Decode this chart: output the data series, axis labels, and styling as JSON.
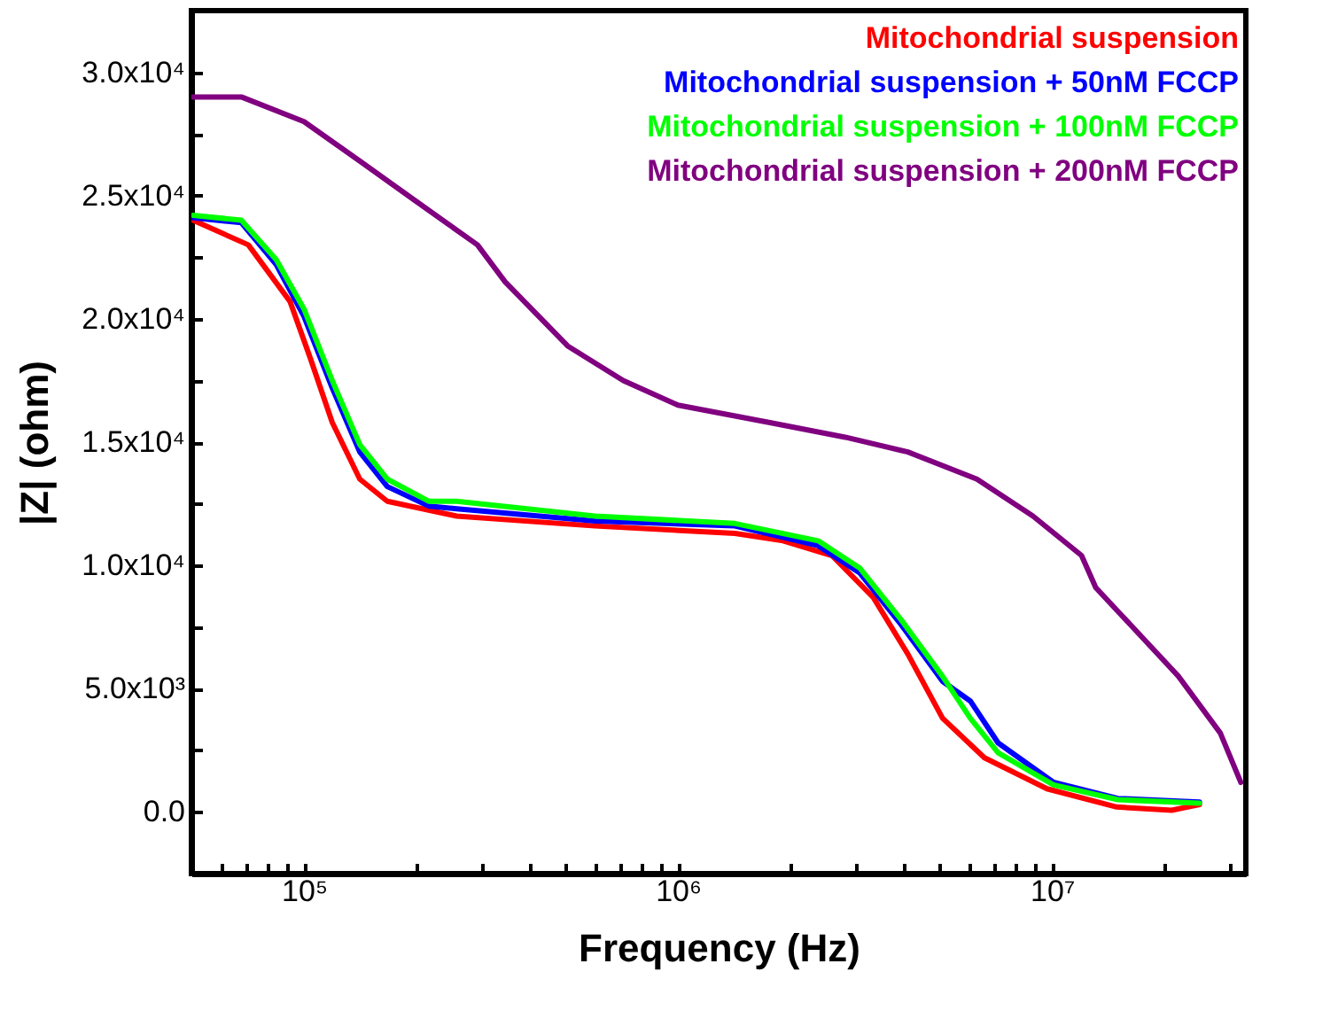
{
  "chart_data": {
    "type": "line",
    "xlabel": "Frequency (Hz)",
    "ylabel": "|Z| (ohm)",
    "log": "x",
    "xlim": [
      50000,
      33000000
    ],
    "ylim": [
      -2500,
      32500
    ],
    "xticks": [
      {
        "value": 100000,
        "label": "10⁵"
      },
      {
        "value": 1000000,
        "label": "10⁶"
      },
      {
        "value": 10000000,
        "label": "10⁷"
      },
      {
        "value": 60000,
        "label": null
      },
      {
        "value": 70000,
        "label": null
      },
      {
        "value": 80000,
        "label": null
      },
      {
        "value": 90000,
        "label": null
      },
      {
        "value": 200000,
        "label": null
      },
      {
        "value": 300000,
        "label": null
      },
      {
        "value": 400000,
        "label": null
      },
      {
        "value": 500000,
        "label": null
      },
      {
        "value": 600000,
        "label": null
      },
      {
        "value": 700000,
        "label": null
      },
      {
        "value": 800000,
        "label": null
      },
      {
        "value": 900000,
        "label": null
      },
      {
        "value": 2000000,
        "label": null
      },
      {
        "value": 3000000,
        "label": null
      },
      {
        "value": 4000000,
        "label": null
      },
      {
        "value": 5000000,
        "label": null
      },
      {
        "value": 6000000,
        "label": null
      },
      {
        "value": 7000000,
        "label": null
      },
      {
        "value": 8000000,
        "label": null
      },
      {
        "value": 9000000,
        "label": null
      },
      {
        "value": 20000000,
        "label": null
      },
      {
        "value": 30000000,
        "label": null
      }
    ],
    "yticks": [
      {
        "value": 0,
        "label": "0.0"
      },
      {
        "value": 5000,
        "label": "5.0x10³"
      },
      {
        "value": 10000,
        "label": "1.0x10⁴"
      },
      {
        "value": 15000,
        "label": "1.5x10⁴"
      },
      {
        "value": 20000,
        "label": "2.0x10⁴"
      },
      {
        "value": 25000,
        "label": "2.5x10⁴"
      },
      {
        "value": 30000,
        "label": "3.0x10⁴"
      },
      {
        "value": -2500,
        "label": null
      },
      {
        "value": 2500,
        "label": null
      },
      {
        "value": 7500,
        "label": null
      },
      {
        "value": 12500,
        "label": null
      },
      {
        "value": 17500,
        "label": null
      },
      {
        "value": 22500,
        "label": null
      },
      {
        "value": 27500,
        "label": null
      }
    ],
    "grid": false,
    "legend": "top right",
    "marker": "none",
    "line_style": "solid",
    "series": [
      {
        "name": "Mitochondrial suspension",
        "color": "#ff0000",
        "x": [
          50500,
          71000,
          91800,
          104000,
          119000,
          141000,
          167000,
          256000,
          600000,
          1420000,
          1910000,
          2580000,
          3330000,
          4120000,
          5100000,
          6600000,
          9700000,
          14900000,
          20900000,
          24800000
        ],
        "values": [
          24000,
          23000,
          20700,
          18400,
          15800,
          13500,
          12600,
          12000,
          11600,
          11300,
          11000,
          10400,
          8700,
          6400,
          3800,
          2200,
          940,
          200,
          70,
          300
        ]
      },
      {
        "name": "Mitochondrial suspension + 50nM FCCP",
        "color": "#0000ff",
        "x": [
          50500,
          68000,
          84300,
          100000,
          119000,
          141000,
          167000,
          216000,
          256000,
          600000,
          1420000,
          2370000,
          3060000,
          3950000,
          5100000,
          6050000,
          7180000,
          10100000,
          15000000,
          24800000
        ],
        "values": [
          24100,
          23900,
          22200,
          20100,
          17200,
          14600,
          13200,
          12400,
          12300,
          11800,
          11600,
          10800,
          9700,
          7600,
          5300,
          4500,
          2800,
          1200,
          550,
          400
        ]
      },
      {
        "name": "Mitochondrial suspension + 100nM FCCP",
        "color": "#00ff00",
        "x": [
          50500,
          68000,
          84300,
          100000,
          119000,
          141000,
          167000,
          216000,
          256000,
          600000,
          1420000,
          2370000,
          3060000,
          3950000,
          5100000,
          6050000,
          7180000,
          10100000,
          15000000,
          24800000
        ],
        "values": [
          24200,
          24000,
          22400,
          20400,
          17500,
          14900,
          13500,
          12600,
          12600,
          12000,
          11700,
          11000,
          9900,
          7800,
          5500,
          3800,
          2400,
          1100,
          500,
          360
        ]
      },
      {
        "name": "Mitochondrial suspension + 200nM FCCP",
        "color": "#800080",
        "x": [
          50500,
          68000,
          100000,
          141000,
          198000,
          291000,
          345000,
          507000,
          714000,
          1000000,
          1750000,
          2800000,
          4120000,
          6300000,
          8900000,
          12000000,
          13100000,
          16900000,
          21800000,
          28200000,
          32000000
        ],
        "values": [
          29000,
          29000,
          28000,
          26400,
          24800,
          23000,
          21500,
          18900,
          17500,
          16500,
          15800,
          15200,
          14600,
          13500,
          12000,
          10400,
          9100,
          7300,
          5500,
          3200,
          1200
        ]
      }
    ]
  }
}
